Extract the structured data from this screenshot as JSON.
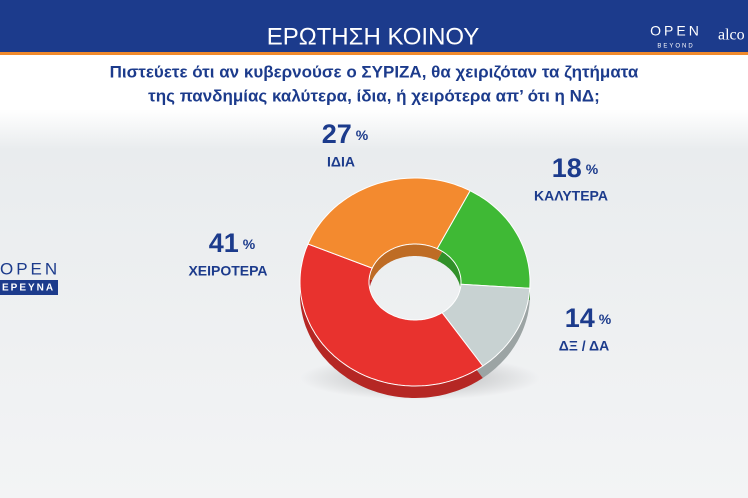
{
  "chart_data": {
    "type": "pie",
    "title": "ΕΡΩΤΗΣΗ ΚΟΙΝΟΥ",
    "subtitle": [
      "Πιστεύετε ότι αν κυβερνούσε ο ΣΥΡΙΖΑ, θα χειριζόταν τα ζητήματα",
      "της πανδημίας καλύτερα, ίδια, ή χειρότερα απ’ ότι η ΝΔ;"
    ],
    "categories": [
      "ΚΑΛΥΤΕΡΑ",
      "ΔΞ / ΔΑ",
      "ΧΕΙΡΟΤΕΡΑ",
      "ΙΔΙΑ"
    ],
    "values": [
      18,
      14,
      41,
      27
    ],
    "unit": "%",
    "colors": [
      "#3fb935",
      "#c8d2d2",
      "#e8322e",
      "#f38a2f"
    ],
    "donut": true
  },
  "logos": {
    "top_right": [
      "OPEN",
      "BEYOND",
      "alco"
    ],
    "left": [
      "OPEN",
      "ΕΡΕΥΝΑ"
    ]
  }
}
